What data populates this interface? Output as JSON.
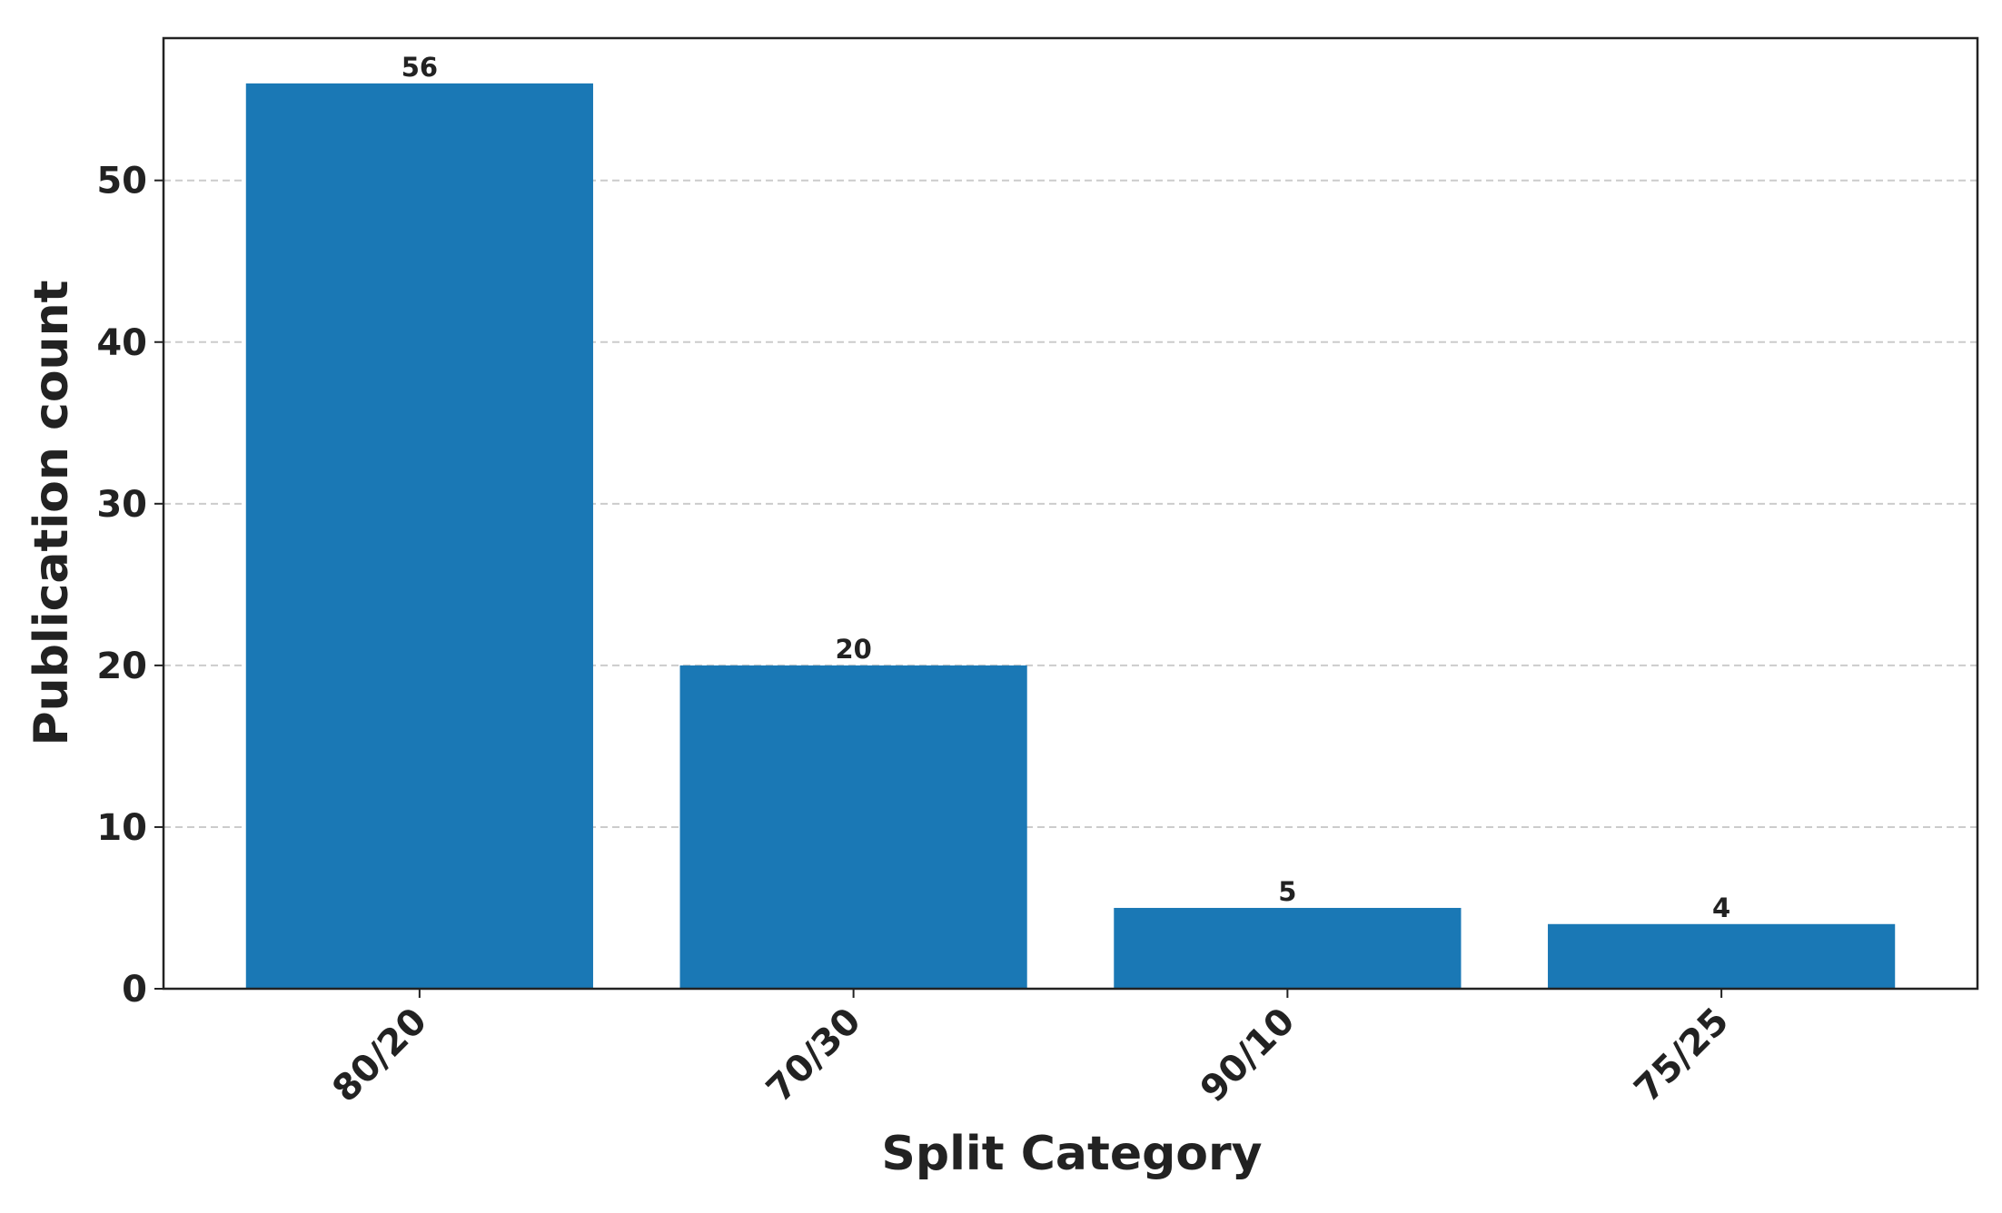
{
  "chart_data": {
    "type": "bar",
    "x_label": "Split Category",
    "y_label": "Publication count",
    "categories": [
      "80/20",
      "70/30",
      "90/10",
      "75/25"
    ],
    "values": [
      56,
      20,
      5,
      4
    ],
    "color": "#1a78b5",
    "ylim": [
      0,
      58.8
    ],
    "yticks": [
      0,
      10,
      20,
      30,
      40,
      50
    ],
    "grid": true
  }
}
